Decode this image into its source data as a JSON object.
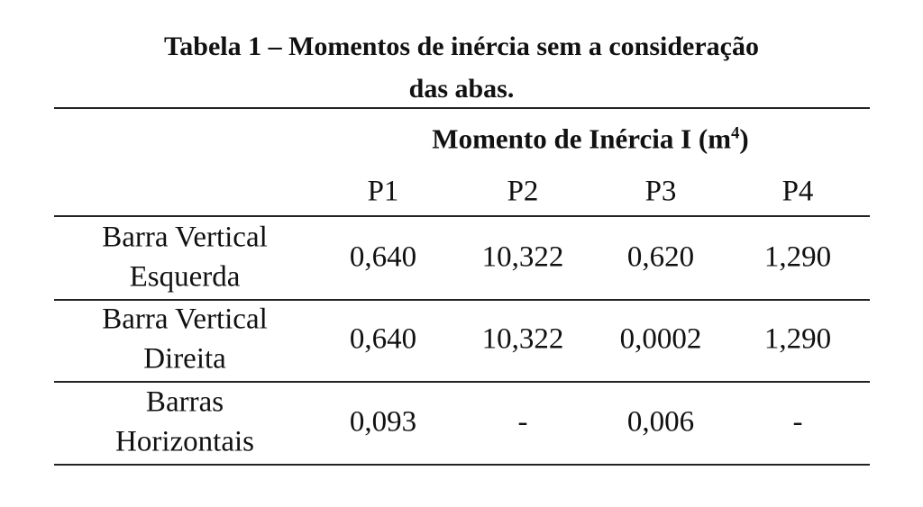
{
  "title": [
    "Tabela 1 – Momentos de inércia sem a consideração",
    "das abas."
  ],
  "table": {
    "group_header": {
      "text": "Momento de Inércia I (m",
      "superscript": "4",
      "suffix": ")"
    },
    "columns": [
      "P1",
      "P2",
      "P3",
      "P4"
    ],
    "rows": [
      {
        "label": [
          "Barra Vertical",
          "Esquerda"
        ],
        "cells": [
          "0,640",
          "10,322",
          "0,620",
          "1,290"
        ]
      },
      {
        "label": [
          "Barra Vertical",
          "Direita"
        ],
        "cells": [
          "0,640",
          "10,322",
          "0,0002",
          "1,290"
        ]
      },
      {
        "label": [
          "Barras",
          "Horizontais"
        ],
        "cells": [
          "0,093",
          "-",
          "0,006",
          "-"
        ]
      }
    ]
  }
}
